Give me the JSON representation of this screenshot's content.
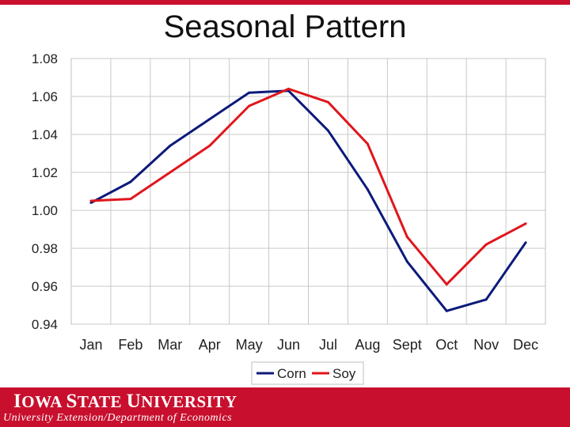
{
  "header": {
    "title": "Seasonal Pattern"
  },
  "chart_data": {
    "type": "line",
    "title": "Seasonal Pattern",
    "xlabel": "",
    "ylabel": "",
    "categories": [
      "Jan",
      "Feb",
      "Mar",
      "Apr",
      "May",
      "Jun",
      "Jul",
      "Aug",
      "Sept",
      "Oct",
      "Nov",
      "Dec"
    ],
    "ylim": [
      0.94,
      1.08
    ],
    "yticks": [
      0.94,
      0.96,
      0.98,
      1.0,
      1.02,
      1.04,
      1.06,
      1.08
    ],
    "ytick_labels": [
      "0.94",
      "0.96",
      "0.98",
      "1.00",
      "1.02",
      "1.04",
      "1.06",
      "1.08"
    ],
    "grid": true,
    "legend": "bottom",
    "series": [
      {
        "name": "Corn",
        "color": "#0c1a7a",
        "values": [
          1.004,
          1.015,
          1.034,
          1.048,
          1.062,
          1.063,
          1.042,
          1.011,
          0.973,
          0.947,
          0.953,
          0.983
        ]
      },
      {
        "name": "Soy",
        "color": "#e0161c",
        "values": [
          1.005,
          1.006,
          1.02,
          1.034,
          1.055,
          1.064,
          1.057,
          1.035,
          0.986,
          0.961,
          0.982,
          0.993
        ]
      }
    ]
  },
  "footer": {
    "university_name_first": "I",
    "university_name_rest": "OWA ",
    "university_name_second": "S",
    "university_name_second_rest": "TATE ",
    "university_name_third": "U",
    "university_name_third_rest": "NIVERSITY",
    "department": "University Extension/Department of Economics"
  }
}
